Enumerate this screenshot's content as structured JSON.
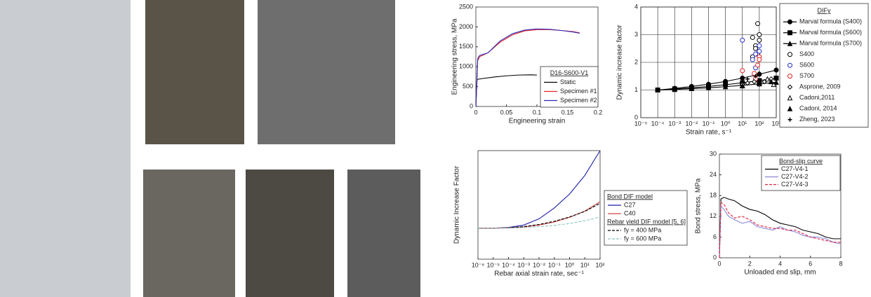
{
  "chart_data": [
    {
      "type": "line",
      "xlabel": "Engineering strain",
      "ylabel": "Engineering stress, MPa",
      "xlim": [
        0,
        0.2
      ],
      "ylim": [
        0,
        2500
      ],
      "xticks": [
        0,
        0.05,
        0.1,
        0.15,
        0.2
      ],
      "yticks": [
        0,
        500,
        1000,
        1500,
        2000,
        2500
      ],
      "grid": false,
      "legend_title": "D16-S600-V1",
      "series": [
        {
          "name": "Static",
          "color": "#000000",
          "linestyle": "solid",
          "x": [
            0,
            0.002,
            0.01,
            0.03,
            0.05,
            0.07,
            0.09,
            0.1
          ],
          "values": [
            0,
            680,
            700,
            740,
            770,
            790,
            795,
            790
          ]
        },
        {
          "name": "Specimen #1",
          "color": "#e8202a",
          "linestyle": "solid",
          "x": [
            0,
            0.003,
            0.006,
            0.02,
            0.04,
            0.06,
            0.08,
            0.1,
            0.12,
            0.14,
            0.16,
            0.17
          ],
          "values": [
            0,
            1150,
            1250,
            1350,
            1620,
            1800,
            1900,
            1930,
            1930,
            1910,
            1880,
            1850
          ]
        },
        {
          "name": "Specimen #2",
          "color": "#2a2ab8",
          "linestyle": "solid",
          "x": [
            0,
            0.003,
            0.006,
            0.02,
            0.04,
            0.06,
            0.08,
            0.1,
            0.12,
            0.14,
            0.16,
            0.17
          ],
          "values": [
            0,
            1200,
            1280,
            1350,
            1650,
            1830,
            1920,
            1950,
            1940,
            1910,
            1870,
            1840
          ]
        }
      ]
    },
    {
      "type": "line",
      "xlabel": "Strain rate, s⁻¹",
      "ylabel": "Dynamic increase factor",
      "xscale": "log",
      "xlim": [
        1e-05,
        1000
      ],
      "ylim": [
        0,
        4
      ],
      "xticks": [
        {
          "value": 1e-05,
          "label": "10⁻⁵"
        },
        {
          "value": 0.0001,
          "label": "10⁻⁴"
        },
        {
          "value": 0.001,
          "label": "10⁻³"
        },
        {
          "value": 0.01,
          "label": "10⁻²"
        },
        {
          "value": 0.1,
          "label": "10⁻¹"
        },
        {
          "value": 1,
          "label": "10⁰"
        },
        {
          "value": 10,
          "label": "10¹"
        },
        {
          "value": 100,
          "label": "10²"
        },
        {
          "value": 1000,
          "label": "10³"
        }
      ],
      "yticks": [
        0,
        1,
        2,
        3,
        4
      ],
      "grid": true,
      "legend_title": "DIFy",
      "series": [
        {
          "name": "Marval formula (S400)",
          "color": "#000000",
          "linestyle": "solid",
          "marker": "circle",
          "marker_fill": "filled",
          "x": [
            0.0001,
            0.001,
            0.01,
            0.1,
            1,
            10,
            100,
            1000
          ],
          "values": [
            1,
            1.06,
            1.13,
            1.21,
            1.31,
            1.43,
            1.57,
            1.72
          ]
        },
        {
          "name": "Marval formula (S600)",
          "color": "#000000",
          "linestyle": "solid",
          "marker": "square",
          "marker_fill": "filled",
          "x": [
            0.0001,
            0.001,
            0.01,
            0.1,
            1,
            10,
            100,
            1000
          ],
          "values": [
            1,
            1.04,
            1.08,
            1.13,
            1.19,
            1.26,
            1.34,
            1.43
          ]
        },
        {
          "name": "Marval formula (S700)",
          "color": "#000000",
          "linestyle": "solid",
          "marker": "triangle",
          "marker_fill": "filled",
          "x": [
            0.0001,
            0.001,
            0.01,
            0.1,
            1,
            10,
            100,
            1000
          ],
          "values": [
            1,
            1.02,
            1.05,
            1.08,
            1.12,
            1.17,
            1.22,
            1.28
          ]
        },
        {
          "name": "S400",
          "color": "#000000",
          "linestyle": "none",
          "marker": "circle",
          "marker_fill": "open",
          "x": [
            40,
            60,
            80,
            100,
            40,
            60,
            100,
            80
          ],
          "values": [
            2.9,
            2.6,
            3.4,
            3.0,
            2.2,
            2.5,
            2.8,
            2.3
          ]
        },
        {
          "name": "S600",
          "color": "#1f2fd0",
          "linestyle": "none",
          "marker": "circle",
          "marker_fill": "open",
          "x": [
            10,
            40,
            60,
            100,
            100,
            60
          ],
          "values": [
            2.8,
            2.1,
            2.3,
            2.6,
            2.4,
            1.8
          ]
        },
        {
          "name": "S700",
          "color": "#e02020",
          "linestyle": "none",
          "marker": "circle",
          "marker_fill": "open",
          "x": [
            10,
            50,
            80,
            100,
            60,
            100
          ],
          "values": [
            1.7,
            1.6,
            1.9,
            2.2,
            1.4,
            2.1
          ]
        },
        {
          "name": "Asprone, 2009",
          "color": "#000000",
          "linestyle": "none",
          "marker": "diamond",
          "marker_fill": "open",
          "x": [
            10,
            20,
            50,
            100,
            200,
            500
          ],
          "values": [
            1.2,
            1.25,
            1.3,
            1.2,
            1.3,
            1.4
          ]
        },
        {
          "name": "Cadoni,2011",
          "color": "#000000",
          "linestyle": "none",
          "marker": "triangle",
          "marker_fill": "open",
          "x": [
            100,
            300,
            700
          ],
          "values": [
            1.3,
            1.4,
            1.2
          ]
        },
        {
          "name": "Cadoni, 2014",
          "color": "#000000",
          "linestyle": "none",
          "marker": "triangle",
          "marker_fill": "filled",
          "x": [
            10,
            100,
            500
          ],
          "values": [
            1.15,
            1.25,
            1.3
          ]
        },
        {
          "name": "Zheng, 2023",
          "color": "#000000",
          "linestyle": "none",
          "marker": "plus",
          "marker_fill": "filled",
          "x": [
            20,
            60,
            100
          ],
          "values": [
            1.4,
            1.5,
            1.6
          ]
        }
      ]
    },
    {
      "type": "line",
      "xlabel": "Rebar axial strain rate, sec⁻¹",
      "ylabel": "Dynamic Increase Factor",
      "xscale": "log",
      "xlim": [
        1e-06,
        100
      ],
      "ylim": [
        0,
        3.5
      ],
      "xticks": [
        {
          "value": 1e-06,
          "label": "10⁻⁶"
        },
        {
          "value": 1e-05,
          "label": "10⁻⁵"
        },
        {
          "value": 0.0001,
          "label": "10⁻⁴"
        },
        {
          "value": 0.001,
          "label": "10⁻³"
        },
        {
          "value": 0.01,
          "label": "10⁻²"
        },
        {
          "value": 0.1,
          "label": "10⁻¹"
        },
        {
          "value": 1,
          "label": "10⁰"
        },
        {
          "value": 10,
          "label": "10¹"
        },
        {
          "value": 100,
          "label": "10²"
        }
      ],
      "yticks": [],
      "grid": false,
      "series_groups": [
        {
          "name": "Bond DIF model",
          "series": [
            {
              "name": "C27",
              "color": "#1a1aa8",
              "linestyle": "solid",
              "x": [
                1e-06,
                1e-05,
                0.0001,
                0.001,
                0.01,
                0.1,
                1,
                10,
                100
              ],
              "values": [
                1,
                1,
                1.02,
                1.1,
                1.3,
                1.65,
                2.1,
                2.7,
                3.5
              ]
            },
            {
              "name": "C40",
              "color": "#d04040",
              "linestyle": "solid",
              "x": [
                1e-06,
                1e-05,
                0.0001,
                0.001,
                0.01,
                0.1,
                1,
                10,
                100
              ],
              "values": [
                1,
                1,
                1.01,
                1.04,
                1.1,
                1.2,
                1.35,
                1.55,
                1.85
              ]
            }
          ]
        },
        {
          "name": "Rebar yield DIF model [5, 6]",
          "series": [
            {
              "name": "fy = 400 MPa",
              "color": "#000000",
              "linestyle": "dashed",
              "x": [
                1e-06,
                1e-05,
                0.0001,
                0.001,
                0.01,
                0.1,
                1,
                10,
                100
              ],
              "values": [
                1,
                1,
                1.01,
                1.05,
                1.12,
                1.22,
                1.36,
                1.54,
                1.8
              ]
            },
            {
              "name": "fy = 600 MPa",
              "color": "#8cc4c0",
              "linestyle": "dashed",
              "x": [
                1e-06,
                1e-05,
                0.0001,
                0.001,
                0.01,
                0.1,
                1,
                10,
                100
              ],
              "values": [
                1,
                1,
                1,
                1.02,
                1.05,
                1.09,
                1.15,
                1.24,
                1.36
              ]
            }
          ]
        }
      ]
    },
    {
      "type": "line",
      "xlabel": "Unloaded end slip, mm",
      "ylabel": "Bond stress, MPa",
      "xlim": [
        0,
        8
      ],
      "ylim": [
        0,
        30
      ],
      "xticks": [
        0,
        2,
        4,
        6,
        8
      ],
      "yticks": [
        0,
        6,
        12,
        18,
        24,
        30
      ],
      "grid": false,
      "legend_title": "Bond-slip curve",
      "series": [
        {
          "name": "C27-V4-1",
          "color": "#000000",
          "linestyle": "solid",
          "x": [
            0,
            0.1,
            0.3,
            0.6,
            1,
            1.5,
            2,
            2.5,
            3,
            3.5,
            4,
            4.5,
            5,
            5.5,
            6,
            6.5,
            7,
            7.5,
            8
          ],
          "values": [
            0,
            17,
            17.5,
            17,
            16.5,
            15,
            14,
            13.5,
            12.5,
            11,
            10,
            9.5,
            9,
            8,
            7.5,
            7,
            6,
            5.5,
            5.5
          ]
        },
        {
          "name": "C27-V4-2",
          "color": "#8a8ad8",
          "linestyle": "solid",
          "x": [
            0,
            0.1,
            0.3,
            0.6,
            1,
            1.5,
            2,
            2.5,
            3,
            3.5,
            4,
            4.5,
            5,
            5.5,
            6,
            6.5,
            7,
            7.5,
            8
          ],
          "values": [
            0,
            15,
            14,
            12,
            11,
            10,
            10.5,
            9,
            8.5,
            8,
            9,
            8,
            7.5,
            6.5,
            6,
            6,
            5.5,
            4.5,
            4
          ]
        },
        {
          "name": "C27-V4-3",
          "color": "#e02040",
          "linestyle": "dashed",
          "x": [
            0,
            0.1,
            0.3,
            0.6,
            1,
            1.5,
            2,
            2.5,
            3,
            3.5,
            4,
            4.5,
            5,
            5.5,
            6,
            6.5,
            7,
            7.5,
            8
          ],
          "values": [
            0,
            16,
            15.5,
            13,
            11.5,
            12,
            11,
            9.5,
            9,
            8.5,
            8.5,
            8,
            8,
            7,
            6,
            5.5,
            5,
            4.5,
            4.5
          ]
        }
      ]
    }
  ]
}
